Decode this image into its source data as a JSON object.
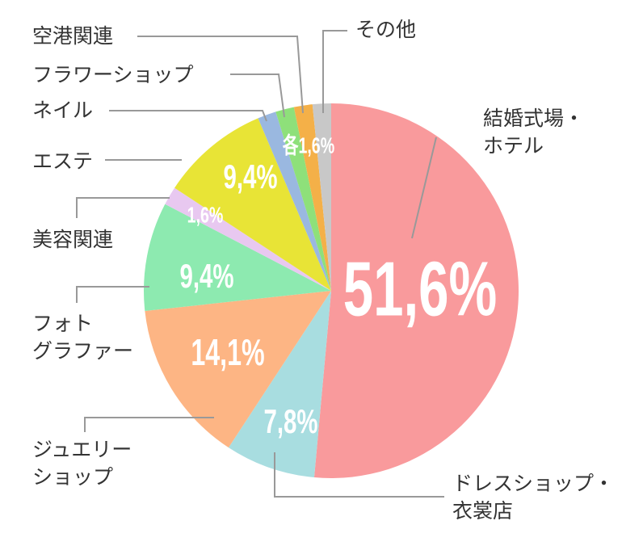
{
  "chart_data": {
    "type": "pie",
    "categories": [
      "結婚式場・\nホテル",
      "ドレスショップ・\n衣裳店",
      "ジュエリー\nショップ",
      "フォト\nグラファー",
      "美容関連",
      "エステ",
      "ネイル",
      "フラワーショップ",
      "空港関連",
      "その他"
    ],
    "values": [
      51.6,
      7.8,
      14.1,
      9.4,
      1.6,
      9.4,
      1.6,
      1.6,
      1.6,
      1.6
    ],
    "value_labels": [
      "51,6%",
      "7,8%",
      "14,1%",
      "9,4%",
      "1,6%",
      "9,4%",
      null,
      null,
      null,
      null
    ],
    "group_value_label": "各1,6%",
    "colors": [
      "#f99a9c",
      "#a8dde0",
      "#fdb584",
      "#8deab0",
      "#e8c8f0",
      "#e8e436",
      "#9ab8e0",
      "#8ee07a",
      "#f4b048",
      "#c8c8c8"
    ]
  }
}
